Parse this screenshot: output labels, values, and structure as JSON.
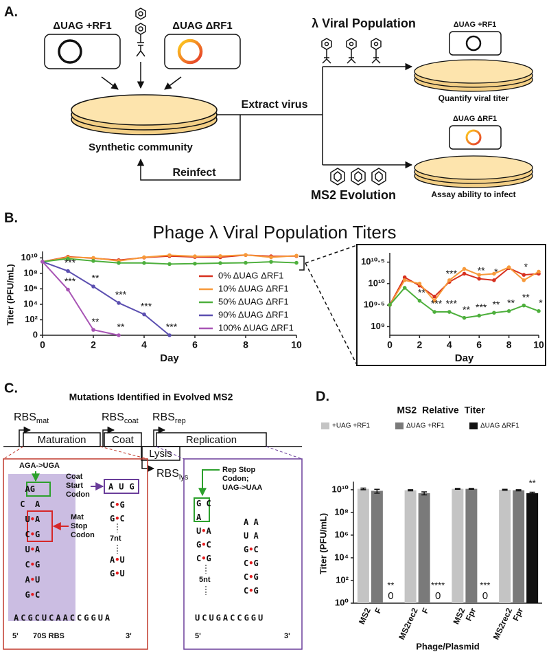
{
  "panel_a": {
    "label": "A.",
    "strain_1": "ΔUAG +RF1",
    "strain_2": "ΔUAG ΔRF1",
    "community": "Synthetic community",
    "extract": "Extract virus",
    "reinfect": "Reinfect",
    "lambda": "λ Viral Population",
    "ms2": "MS2 Evolution",
    "assay_1": {
      "strain": "ΔUAG +RF1",
      "caption": "Quantify viral titer"
    },
    "assay_2": {
      "strain": "ΔUAG ΔRF1",
      "caption": "Assay ability to infect"
    }
  },
  "panel_b": {
    "label": "B.",
    "title": "Phage λ Viral Population Titers"
  },
  "chart_data": [
    {
      "type": "line",
      "x_label": "Day",
      "y_label": "Titer (PFU/mL)",
      "log_y": true,
      "legend": "lower-right",
      "x": [
        0,
        1,
        2,
        3,
        4,
        5,
        6,
        7,
        8,
        9,
        10
      ],
      "xlim": [
        0,
        10
      ],
      "xticks": [
        0,
        2,
        4,
        6,
        8,
        10
      ],
      "ylim": [
        1,
        30000000000
      ],
      "yticks": [
        0,
        {
          "value": 100,
          "label": "10²"
        },
        {
          "value": 10000,
          "label": "10⁴"
        },
        {
          "value": 1000000,
          "label": "10⁶"
        },
        {
          "value": 100000000,
          "label": "10⁸"
        },
        {
          "value": 10000000000,
          "label": "10¹⁰"
        }
      ],
      "series": [
        {
          "name": "0% ΔUAG ΔRF1",
          "color": "#d7301f",
          "values": [
            3200000000,
            14000000000,
            9000000000,
            5000000000,
            11000000000,
            17000000000,
            13000000000,
            12000000000,
            23000000000,
            16000000000,
            17000000000
          ]
        },
        {
          "name": "10% ΔUAG ΔRF1",
          "color": "#f7993a",
          "values": [
            3200000000,
            12000000000,
            10000000000,
            4000000000,
            12000000000,
            22000000000,
            16000000000,
            17000000000,
            24000000000,
            12000000000,
            19000000000
          ]
        },
        {
          "name": "50% ΔUAG ΔRF1",
          "color": "#4daf3c",
          "values": [
            3200000000,
            8000000000,
            4000000000,
            2200000000,
            2200000000,
            1600000000,
            1800000000,
            2100000000,
            2300000000,
            3100000000,
            2300000000
          ]
        },
        {
          "name": "90% ΔUAG ΔRF1",
          "color": "#5b4fb0",
          "values": [
            3200000000,
            200000000,
            2000000,
            15000,
            500,
            0,
            null,
            null,
            null,
            null,
            null
          ],
          "significance": [
            null,
            "***",
            "**",
            "***",
            "***",
            "***",
            null,
            null,
            null,
            null,
            null
          ]
        },
        {
          "name": "100% ΔUAG ΔRF1",
          "color": "#a855b5",
          "values": [
            3200000000,
            800000,
            5,
            0,
            null,
            null,
            null,
            null,
            null,
            null,
            null
          ],
          "significance": [
            null,
            "***",
            "**",
            "**",
            null,
            null,
            null,
            null,
            null,
            null,
            null
          ]
        }
      ]
    },
    {
      "type": "line",
      "x_label": "Day",
      "log_y": true,
      "x": [
        0,
        1,
        2,
        3,
        4,
        5,
        6,
        7,
        8,
        9,
        10
      ],
      "xlim": [
        0,
        10
      ],
      "xticks": [
        0,
        2,
        4,
        6,
        8,
        10
      ],
      "ylim": [
        630000000,
        45000000000
      ],
      "yticks": [
        {
          "value": 1000000000,
          "label": "10⁹"
        },
        {
          "value": 3162277660,
          "label": "10⁹·⁵"
        },
        {
          "value": 10000000000,
          "label": "10¹⁰"
        },
        {
          "value": 31622776600,
          "label": "10¹⁰·⁵"
        }
      ],
      "series": [
        {
          "color": "#d7301f",
          "values": [
            3200000000,
            14000000000,
            9000000000,
            5000000000,
            11000000000,
            17000000000,
            13000000000,
            12000000000,
            23000000000,
            16000000000,
            17000000000
          ],
          "significance": [
            null,
            null,
            null,
            null,
            "***",
            null,
            "**",
            "*",
            null,
            "*",
            null
          ]
        },
        {
          "color": "#f7993a",
          "values": [
            3200000000,
            12000000000,
            10000000000,
            4000000000,
            12000000000,
            22000000000,
            16000000000,
            17000000000,
            24000000000,
            12000000000,
            19000000000
          ]
        },
        {
          "color": "#4daf3c",
          "values": [
            3200000000,
            8000000000,
            4000000000,
            2200000000,
            2200000000,
            1600000000,
            1800000000,
            2100000000,
            2300000000,
            3100000000,
            2300000000
          ],
          "significance": [
            null,
            null,
            "**",
            "***",
            "***",
            "**",
            "***",
            "**",
            "**",
            "**",
            "*"
          ]
        }
      ]
    },
    {
      "type": "bar",
      "title": "MS2 Relative Titer",
      "x_label": "Phage/Plasmid",
      "y_label": "Titer (PFU/mL)",
      "log_y": true,
      "legend": "top",
      "categories": [
        [
          "MS2",
          "F"
        ],
        [
          "MS2rec2",
          "F"
        ],
        [
          "MS2",
          "Fpr"
        ],
        [
          "MS2rec2",
          "Fpr"
        ]
      ],
      "ylim": [
        1,
        30000000000
      ],
      "yticks": [
        {
          "value": 1,
          "label": "10⁰"
        },
        {
          "value": 100,
          "label": "10²"
        },
        {
          "value": 10000,
          "label": "10⁴"
        },
        {
          "value": 1000000,
          "label": "10⁶"
        },
        {
          "value": 100000000,
          "label": "10⁸"
        },
        {
          "value": 10000000000,
          "label": "10¹⁰"
        }
      ],
      "series": [
        {
          "name": "+UAG +RF1",
          "color": "#c4c4c4",
          "values": [
            12000000000,
            9000000000,
            12000000000,
            10000000000
          ],
          "errors": [
            2000000000,
            1000000000,
            1000000000,
            1000000000
          ]
        },
        {
          "name": "ΔUAG +RF1",
          "color": "#7a7a7a",
          "values": [
            8000000000,
            5000000000,
            12000000000,
            9000000000
          ],
          "errors": [
            3000000000,
            1500000000,
            1000000000,
            1000000000
          ]
        },
        {
          "name": "ΔUAG ΔRF1",
          "color": "#111111",
          "values": [
            0,
            0,
            0,
            5000000000
          ],
          "value_labels": [
            "0",
            "0",
            "0",
            null
          ],
          "errors": [
            null,
            null,
            null,
            1000000000
          ],
          "significance": [
            "**",
            "****",
            "***",
            "**"
          ]
        }
      ]
    }
  ],
  "panel_c": {
    "label": "C.",
    "title": "Mutations Identified in Evolved MS2",
    "rbs": [
      {
        "base": "RBS",
        "sub": "mat"
      },
      {
        "base": "RBS",
        "sub": "coat"
      },
      {
        "base": "RBS",
        "sub": "rep"
      },
      {
        "base": "RBS",
        "sub": "lys"
      }
    ],
    "genes": [
      "Maturation",
      "Coat",
      "Replication",
      "Lysis"
    ],
    "left": {
      "mutation": "AGA->UGA",
      "coat_start": [
        "Coat",
        "Start",
        "Codon"
      ],
      "mat_stop": [
        "Mat",
        "Stop",
        "Codon"
      ],
      "start_codon": "AUG",
      "stem": [
        "  AG",
        " C  A",
        "  U•A",
        "  C•G",
        "  U•A",
        "  C•G",
        "  A•U",
        "  G•C"
      ],
      "coat_stem_1": [
        "C•G",
        "G•C"
      ],
      "loop": "7nt",
      "coat_stem_2": [
        "A•U",
        "G•U"
      ],
      "sequence": "ACGCUCAACCGGUA",
      "five": "5'",
      "rbs": "70S RBS",
      "three": "3'"
    },
    "right": {
      "mutation": [
        "Rep Stop",
        "Codon;",
        "UAG->UAA"
      ],
      "stem_1": [
        "G C",
        "A",
        "U•A",
        "G•C",
        "C•G"
      ],
      "loop": "5nt",
      "stem_2": [
        "A A",
        "U A",
        "G•C",
        "C•G",
        "C•G",
        "C•G"
      ],
      "sequence": "UCUGACCGGU",
      "five": "5'",
      "three": "3'"
    }
  },
  "panel_d": {
    "label": "D."
  }
}
